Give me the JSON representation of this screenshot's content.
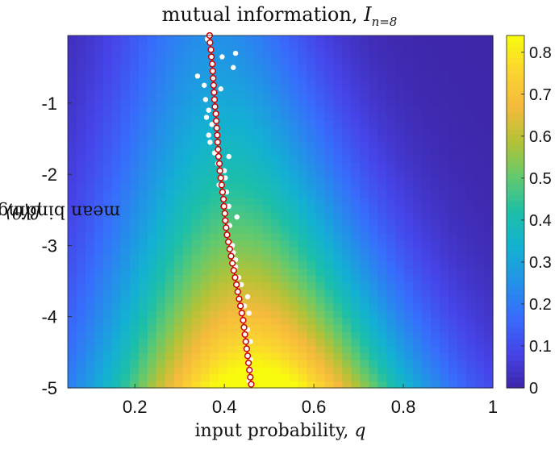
{
  "chart_data": {
    "type": "heatmap",
    "title_main": "mutual information, ",
    "title_var": "I",
    "title_sub": "n=8",
    "xlabel_text": "input probability, ",
    "xlabel_var": "q",
    "ylabel_text": "mean binding affinity, ",
    "ylabel_var": "β⟨θ⟩",
    "xlim": [
      0.05,
      1.0
    ],
    "ylim": [
      -5.0,
      -0.05
    ],
    "xticks": [
      0.2,
      0.4,
      0.6,
      0.8,
      1.0
    ],
    "xtick_labels": [
      "0.2",
      "0.4",
      "0.6",
      "0.8",
      "1"
    ],
    "yticks": [
      -5,
      -4,
      -3,
      -2,
      -1
    ],
    "ytick_labels": [
      "-5",
      "-4",
      "-3",
      "-2",
      "-1"
    ],
    "colorbar": {
      "colormap": "parula",
      "range": [
        0,
        0.84
      ],
      "ticks": [
        0,
        0.1,
        0.2,
        0.3,
        0.4,
        0.5,
        0.6,
        0.7,
        0.8
      ],
      "tick_labels": [
        "0",
        "0.1",
        "0.2",
        "0.3",
        "0.4",
        "0.5",
        "0.6",
        "0.7",
        "0.8"
      ]
    },
    "heatmap_model": {
      "description_peak_value": 0.84,
      "peak_location_q": 0.47,
      "peak_location_beta_theta": -5.0
    },
    "series": [
      {
        "marker": "open-circle",
        "color": "#cc0000",
        "points": [
          [
            0.367,
            -0.05
          ],
          [
            0.368,
            -0.15
          ],
          [
            0.37,
            -0.25
          ],
          [
            0.371,
            -0.35
          ],
          [
            0.373,
            -0.45
          ],
          [
            0.374,
            -0.55
          ],
          [
            0.375,
            -0.65
          ],
          [
            0.376,
            -0.75
          ],
          [
            0.377,
            -0.85
          ],
          [
            0.378,
            -0.95
          ],
          [
            0.379,
            -1.05
          ],
          [
            0.381,
            -1.15
          ],
          [
            0.382,
            -1.25
          ],
          [
            0.383,
            -1.35
          ],
          [
            0.384,
            -1.45
          ],
          [
            0.385,
            -1.55
          ],
          [
            0.386,
            -1.65
          ],
          [
            0.387,
            -1.75
          ],
          [
            0.389,
            -1.85
          ],
          [
            0.39,
            -1.95
          ],
          [
            0.392,
            -2.05
          ],
          [
            0.394,
            -2.15
          ],
          [
            0.396,
            -2.25
          ],
          [
            0.398,
            -2.35
          ],
          [
            0.399,
            -2.45
          ],
          [
            0.401,
            -2.55
          ],
          [
            0.402,
            -2.65
          ],
          [
            0.404,
            -2.75
          ],
          [
            0.406,
            -2.85
          ],
          [
            0.409,
            -2.95
          ],
          [
            0.412,
            -3.05
          ],
          [
            0.415,
            -3.15
          ],
          [
            0.418,
            -3.25
          ],
          [
            0.421,
            -3.35
          ],
          [
            0.424,
            -3.45
          ],
          [
            0.427,
            -3.55
          ],
          [
            0.43,
            -3.65
          ],
          [
            0.433,
            -3.75
          ],
          [
            0.436,
            -3.85
          ],
          [
            0.439,
            -3.95
          ],
          [
            0.442,
            -4.05
          ],
          [
            0.444,
            -4.15
          ],
          [
            0.446,
            -4.25
          ],
          [
            0.448,
            -4.35
          ],
          [
            0.45,
            -4.45
          ],
          [
            0.452,
            -4.55
          ],
          [
            0.454,
            -4.65
          ],
          [
            0.456,
            -4.75
          ],
          [
            0.458,
            -4.85
          ],
          [
            0.46,
            -4.95
          ]
        ]
      },
      {
        "marker": "filled-dot",
        "color": "#ffffff",
        "points": [
          [
            0.362,
            -0.1
          ],
          [
            0.425,
            -0.3
          ],
          [
            0.42,
            -0.5
          ],
          [
            0.34,
            -0.62
          ],
          [
            0.395,
            -0.35
          ],
          [
            0.355,
            -0.75
          ],
          [
            0.392,
            -0.8
          ],
          [
            0.358,
            -0.95
          ],
          [
            0.365,
            -1.1
          ],
          [
            0.36,
            -1.2
          ],
          [
            0.372,
            -1.3
          ],
          [
            0.365,
            -1.45
          ],
          [
            0.368,
            -1.55
          ],
          [
            0.378,
            -1.7
          ],
          [
            0.41,
            -1.75
          ],
          [
            0.385,
            -1.85
          ],
          [
            0.4,
            -1.95
          ],
          [
            0.402,
            -2.05
          ],
          [
            0.388,
            -2.15
          ],
          [
            0.405,
            -2.25
          ],
          [
            0.398,
            -2.35
          ],
          [
            0.41,
            -2.45
          ],
          [
            0.428,
            -2.6
          ],
          [
            0.412,
            -2.72
          ],
          [
            0.405,
            -2.85
          ],
          [
            0.418,
            -3.0
          ],
          [
            0.42,
            -3.1
          ],
          [
            0.425,
            -3.2
          ],
          [
            0.425,
            -3.3
          ],
          [
            0.432,
            -3.45
          ],
          [
            0.438,
            -3.55
          ],
          [
            0.452,
            -3.72
          ],
          [
            0.445,
            -3.85
          ],
          [
            0.455,
            -3.95
          ],
          [
            0.44,
            -4.05
          ],
          [
            0.452,
            -4.18
          ],
          [
            0.458,
            -4.35
          ],
          [
            0.45,
            -4.45
          ],
          [
            0.458,
            -4.6
          ],
          [
            0.46,
            -4.75
          ],
          [
            0.455,
            -4.9
          ]
        ]
      }
    ]
  }
}
